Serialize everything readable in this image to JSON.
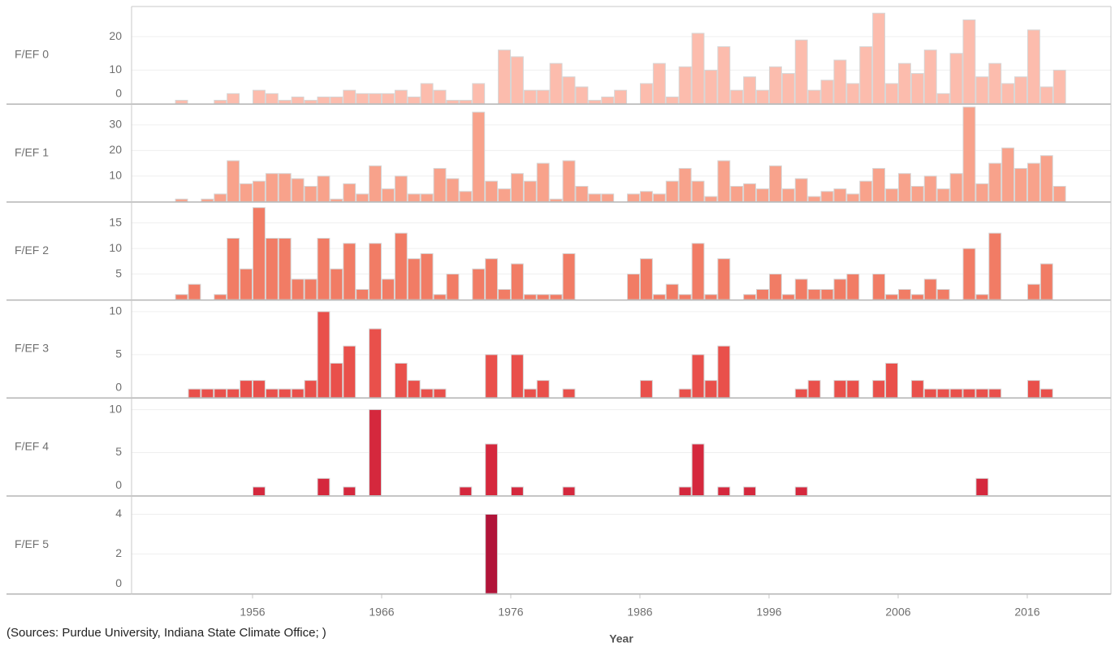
{
  "chart_data": {
    "type": "bar",
    "xlabel": "Year",
    "note": "(Sources: Purdue University, Indiana State Climate Office; )",
    "x": [
      1950,
      1951,
      1952,
      1953,
      1954,
      1955,
      1956,
      1957,
      1958,
      1959,
      1960,
      1961,
      1962,
      1963,
      1964,
      1965,
      1966,
      1967,
      1968,
      1969,
      1970,
      1971,
      1972,
      1973,
      1974,
      1975,
      1976,
      1977,
      1978,
      1979,
      1980,
      1981,
      1982,
      1983,
      1984,
      1985,
      1986,
      1987,
      1988,
      1989,
      1990,
      1991,
      1992,
      1993,
      1994,
      1995,
      1996,
      1997,
      1998,
      1999,
      2000,
      2001,
      2002,
      2003,
      2004,
      2005,
      2006,
      2007,
      2008,
      2009,
      2010,
      2011,
      2012,
      2013,
      2014,
      2015,
      2016,
      2017,
      2018
    ],
    "xlim": [
      1946.63,
      2022.48
    ],
    "xticks": [
      1956,
      1966,
      1976,
      1986,
      1996,
      2006,
      2016
    ],
    "grid": true,
    "series": [
      {
        "name": "F/EF 0",
        "color": "#fcbcad",
        "ylim": [
          0,
          29
        ],
        "yticks": [
          0,
          10,
          20
        ],
        "values": [
          1,
          0,
          0,
          1,
          3,
          0,
          4,
          3,
          1,
          2,
          1,
          2,
          2,
          4,
          3,
          3,
          3,
          4,
          2,
          6,
          4,
          1,
          1,
          6,
          0,
          16,
          14,
          4,
          4,
          12,
          8,
          5,
          1,
          2,
          4,
          0,
          6,
          12,
          2,
          11,
          21,
          10,
          17,
          4,
          8,
          4,
          11,
          9,
          19,
          4,
          7,
          13,
          6,
          17,
          27,
          6,
          12,
          9,
          16,
          3,
          15,
          25,
          8,
          12,
          6,
          8,
          22,
          5,
          10
        ]
      },
      {
        "name": "F/EF 1",
        "color": "#f8a28b",
        "ylim": [
          0,
          38
        ],
        "yticks": [
          10,
          20,
          30
        ],
        "values": [
          1,
          0,
          1,
          3,
          16,
          7,
          8,
          11,
          11,
          9,
          6,
          10,
          1,
          7,
          3,
          14,
          5,
          10,
          3,
          3,
          13,
          9,
          4,
          35,
          8,
          5,
          11,
          8,
          15,
          1,
          16,
          6,
          3,
          3,
          0,
          3,
          4,
          3,
          8,
          13,
          8,
          2,
          16,
          6,
          7,
          5,
          14,
          5,
          9,
          2,
          4,
          5,
          3,
          8,
          13,
          5,
          11,
          6,
          10,
          5,
          11,
          37,
          7,
          15,
          21,
          13,
          15,
          18,
          6
        ]
      },
      {
        "name": "F/EF 2",
        "color": "#f17c65",
        "ylim": [
          0,
          19
        ],
        "yticks": [
          5,
          10,
          15
        ],
        "values": [
          1,
          3,
          0,
          1,
          12,
          6,
          18,
          12,
          12,
          4,
          4,
          12,
          6,
          11,
          2,
          11,
          4,
          13,
          8,
          9,
          1,
          5,
          0,
          6,
          8,
          2,
          7,
          1,
          1,
          1,
          9,
          0,
          0,
          0,
          0,
          5,
          8,
          1,
          3,
          1,
          11,
          1,
          8,
          0,
          1,
          2,
          5,
          1,
          4,
          2,
          2,
          4,
          5,
          0,
          5,
          1,
          2,
          1,
          4,
          2,
          0,
          10,
          1,
          13,
          0,
          0,
          3,
          7,
          0
        ]
      },
      {
        "name": "F/EF 3",
        "color": "#e9504b",
        "ylim": [
          0,
          11.3
        ],
        "yticks": [
          0,
          5,
          10
        ],
        "values": [
          0,
          1,
          1,
          1,
          1,
          2,
          2,
          1,
          1,
          1,
          2,
          10,
          4,
          6,
          0,
          8,
          0,
          4,
          2,
          1,
          1,
          0,
          0,
          0,
          5,
          0,
          5,
          1,
          2,
          0,
          1,
          0,
          0,
          0,
          0,
          0,
          2,
          0,
          0,
          1,
          5,
          2,
          6,
          0,
          0,
          0,
          0,
          0,
          1,
          2,
          0,
          2,
          2,
          0,
          2,
          4,
          0,
          2,
          1,
          1,
          1,
          1,
          1,
          1,
          0,
          0,
          2,
          1,
          0
        ]
      },
      {
        "name": "F/EF 4",
        "color": "#d5283d",
        "ylim": [
          0,
          11.3
        ],
        "yticks": [
          0,
          5,
          10
        ],
        "values": [
          0,
          0,
          0,
          0,
          0,
          0,
          1,
          0,
          0,
          0,
          0,
          2,
          0,
          1,
          0,
          10,
          0,
          0,
          0,
          0,
          0,
          0,
          1,
          0,
          6,
          0,
          1,
          0,
          0,
          0,
          1,
          0,
          0,
          0,
          0,
          0,
          0,
          0,
          0,
          1,
          6,
          0,
          1,
          0,
          1,
          0,
          0,
          0,
          1,
          0,
          0,
          0,
          0,
          0,
          0,
          0,
          0,
          0,
          0,
          0,
          0,
          0,
          2,
          0,
          0,
          0,
          0,
          0,
          0
        ]
      },
      {
        "name": "F/EF 5",
        "color": "#b11439",
        "ylim": [
          0,
          4.9
        ],
        "yticks": [
          0,
          2,
          4
        ],
        "values": [
          0,
          0,
          0,
          0,
          0,
          0,
          0,
          0,
          0,
          0,
          0,
          0,
          0,
          0,
          0,
          0,
          0,
          0,
          0,
          0,
          0,
          0,
          0,
          0,
          4,
          0,
          0,
          0,
          0,
          0,
          0,
          0,
          0,
          0,
          0,
          0,
          0,
          0,
          0,
          0,
          0,
          0,
          0,
          0,
          0,
          0,
          0,
          0,
          0,
          0,
          0,
          0,
          0,
          0,
          0,
          0,
          0,
          0,
          0,
          0,
          0,
          0,
          0,
          0,
          0,
          0,
          0,
          0,
          0
        ]
      }
    ]
  }
}
